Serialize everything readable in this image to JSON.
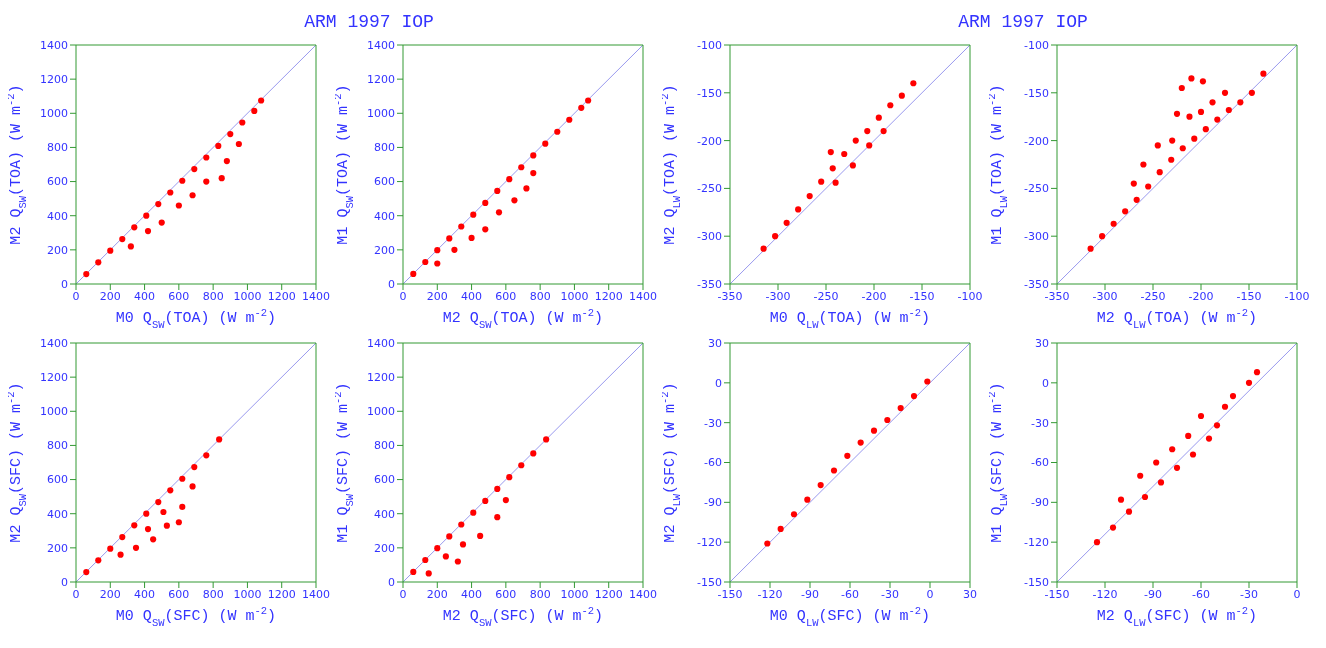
{
  "chart_data": [
    {
      "type": "scatter",
      "title": "ARM 1997 IOP",
      "xlabel": "M0 Q$_{SW}$(TOA) (W m$^{-2}$)",
      "ylabel": "M2 Q$_{SW}$(TOA) (W m$^{-2}$)",
      "xlim": [
        0,
        1400
      ],
      "ylim": [
        0,
        1400
      ],
      "xticks": [
        0,
        200,
        400,
        600,
        800,
        1000,
        1200,
        1400
      ],
      "yticks": [
        0,
        200,
        400,
        600,
        800,
        1000,
        1200,
        1400
      ],
      "grid": false,
      "series": [
        {
          "type": "scatter",
          "color": "#ff0000",
          "marker": "circle",
          "x": [
            60,
            130,
            200,
            270,
            340,
            410,
            480,
            550,
            620,
            690,
            760,
            830,
            900,
            970,
            1040,
            1080,
            320,
            420,
            500,
            600,
            680,
            760,
            850,
            880,
            950
          ],
          "values": [
            58,
            127,
            195,
            263,
            332,
            400,
            468,
            536,
            605,
            673,
            741,
            809,
            878,
            946,
            1014,
            1075,
            220,
            310,
            360,
            460,
            520,
            600,
            620,
            720,
            820
          ]
        },
        {
          "type": "line",
          "color": "#9999ee",
          "x": [
            0,
            1400
          ],
          "values": [
            0,
            1400
          ]
        }
      ]
    },
    {
      "type": "scatter",
      "xlabel": "M2 Q$_{SW}$(TOA) (W m$^{-2}$)",
      "ylabel": "M1 Q$_{SW}$(TOA) (W m$^{-2}$)",
      "xlim": [
        0,
        1400
      ],
      "ylim": [
        0,
        1400
      ],
      "xticks": [
        0,
        200,
        400,
        600,
        800,
        1000,
        1200,
        1400
      ],
      "yticks": [
        0,
        200,
        400,
        600,
        800,
        1000,
        1200,
        1400
      ],
      "grid": false,
      "series": [
        {
          "type": "scatter",
          "color": "#ff0000",
          "marker": "circle",
          "x": [
            60,
            130,
            200,
            270,
            340,
            410,
            480,
            550,
            620,
            690,
            760,
            830,
            900,
            970,
            1040,
            1080,
            200,
            300,
            400,
            480,
            560,
            650,
            720,
            760
          ],
          "values": [
            59,
            129,
            198,
            267,
            337,
            406,
            475,
            545,
            614,
            684,
            753,
            822,
            892,
            962,
            1032,
            1075,
            120,
            200,
            270,
            320,
            420,
            490,
            560,
            650
          ]
        },
        {
          "type": "line",
          "color": "#9999ee",
          "x": [
            0,
            1400
          ],
          "values": [
            0,
            1400
          ]
        }
      ]
    },
    {
      "type": "scatter",
      "title": "ARM 1997 IOP",
      "xlabel": "M0 Q$_{LW}$(TOA) (W m$^{-2}$)",
      "ylabel": "M2 Q$_{LW}$(TOA) (W m$^{-2}$)",
      "xlim": [
        -350,
        -100
      ],
      "ylim": [
        -350,
        -100
      ],
      "xticks": [
        -350,
        -300,
        -250,
        -200,
        -150,
        -100
      ],
      "yticks": [
        -350,
        -300,
        -250,
        -200,
        -150,
        -100
      ],
      "grid": false,
      "series": [
        {
          "type": "scatter",
          "color": "#ff0000",
          "marker": "circle",
          "x": [
            -315,
            -303,
            -291,
            -279,
            -267,
            -255,
            -243,
            -231,
            -219,
            -207,
            -195,
            -183,
            -171,
            -159,
            -240,
            -222,
            -245,
            -205,
            -190
          ],
          "values": [
            -313,
            -300,
            -286,
            -272,
            -258,
            -243,
            -229,
            -214,
            -200,
            -190,
            -176,
            -163,
            -153,
            -140,
            -244,
            -226,
            -212,
            -205,
            -190
          ]
        },
        {
          "type": "line",
          "color": "#9999ee",
          "x": [
            -350,
            -100
          ],
          "values": [
            -350,
            -100
          ]
        }
      ]
    },
    {
      "type": "scatter",
      "xlabel": "M2 Q$_{LW}$(TOA) (W m$^{-2}$)",
      "ylabel": "M1 Q$_{LW}$(TOA) (W m$^{-2}$)",
      "xlim": [
        -350,
        -100
      ],
      "ylim": [
        -350,
        -100
      ],
      "xticks": [
        -350,
        -300,
        -250,
        -200,
        -150,
        -100
      ],
      "yticks": [
        -350,
        -300,
        -250,
        -200,
        -150,
        -100
      ],
      "grid": false,
      "series": [
        {
          "type": "scatter",
          "color": "#ff0000",
          "marker": "circle",
          "x": [
            -315,
            -303,
            -291,
            -279,
            -267,
            -255,
            -243,
            -231,
            -219,
            -207,
            -195,
            -183,
            -171,
            -159,
            -147,
            -135,
            -270,
            -260,
            -245,
            -225,
            -212,
            -200,
            -188,
            -210,
            -198,
            -220,
            -175,
            -230
          ],
          "values": [
            -313,
            -300,
            -287,
            -274,
            -262,
            -248,
            -233,
            -220,
            -208,
            -198,
            -188,
            -178,
            -168,
            -160,
            -150,
            -130,
            -245,
            -225,
            -205,
            -172,
            -175,
            -170,
            -160,
            -135,
            -138,
            -145,
            -150,
            -200
          ]
        },
        {
          "type": "line",
          "color": "#9999ee",
          "x": [
            -350,
            -100
          ],
          "values": [
            -350,
            -100
          ]
        }
      ]
    },
    {
      "type": "scatter",
      "xlabel": "M0 Q$_{SW}$(SFC) (W m$^{-2}$)",
      "ylabel": "M2 Q$_{SW}$(SFC) (W m$^{-2}$)",
      "xlim": [
        0,
        1400
      ],
      "ylim": [
        0,
        1400
      ],
      "xticks": [
        0,
        200,
        400,
        600,
        800,
        1000,
        1200,
        1400
      ],
      "yticks": [
        0,
        200,
        400,
        600,
        800,
        1000,
        1200,
        1400
      ],
      "grid": false,
      "series": [
        {
          "type": "scatter",
          "color": "#ff0000",
          "marker": "circle",
          "x": [
            60,
            130,
            200,
            270,
            340,
            410,
            480,
            550,
            620,
            690,
            760,
            835,
            260,
            350,
            450,
            420,
            530,
            600,
            620,
            510,
            680
          ],
          "values": [
            58,
            127,
            195,
            263,
            332,
            400,
            468,
            537,
            605,
            673,
            742,
            835,
            160,
            200,
            250,
            310,
            330,
            350,
            440,
            410,
            560
          ]
        },
        {
          "type": "line",
          "color": "#9999ee",
          "x": [
            0,
            1400
          ],
          "values": [
            0,
            1400
          ]
        }
      ]
    },
    {
      "type": "scatter",
      "xlabel": "M2 Q$_{SW}$(SFC) (W m$^{-2}$)",
      "ylabel": "M1 Q$_{SW}$(SFC) (W m$^{-2}$)",
      "xlim": [
        0,
        1400
      ],
      "ylim": [
        0,
        1400
      ],
      "xticks": [
        0,
        200,
        400,
        600,
        800,
        1000,
        1200,
        1400
      ],
      "yticks": [
        0,
        200,
        400,
        600,
        800,
        1000,
        1200,
        1400
      ],
      "grid": false,
      "series": [
        {
          "type": "scatter",
          "color": "#ff0000",
          "marker": "circle",
          "x": [
            60,
            130,
            200,
            270,
            340,
            410,
            480,
            550,
            620,
            690,
            760,
            835,
            150,
            250,
            350,
            320,
            450,
            550,
            600
          ],
          "values": [
            59,
            129,
            198,
            267,
            337,
            406,
            475,
            545,
            614,
            684,
            753,
            835,
            50,
            150,
            220,
            120,
            270,
            380,
            480
          ]
        },
        {
          "type": "line",
          "color": "#9999ee",
          "x": [
            0,
            1400
          ],
          "values": [
            0,
            1400
          ]
        }
      ]
    },
    {
      "type": "scatter",
      "xlabel": "M0 Q$_{LW}$(SFC) (W m$^{-2}$)",
      "ylabel": "M2 Q$_{LW}$(SFC) (W m$^{-2}$)",
      "xlim": [
        -150,
        30
      ],
      "ylim": [
        -150,
        30
      ],
      "xticks": [
        -150,
        -120,
        -90,
        -60,
        -30,
        0,
        30
      ],
      "yticks": [
        -150,
        -120,
        -90,
        -60,
        -30,
        0,
        30
      ],
      "grid": false,
      "series": [
        {
          "type": "scatter",
          "color": "#ff0000",
          "marker": "circle",
          "x": [
            -122,
            -112,
            -102,
            -92,
            -82,
            -72,
            -62,
            -52,
            -42,
            -32,
            -22,
            -12,
            -2
          ],
          "values": [
            -121,
            -110,
            -99,
            -88,
            -77,
            -66,
            -55,
            -45,
            -36,
            -28,
            -19,
            -10,
            1
          ]
        },
        {
          "type": "line",
          "color": "#9999ee",
          "x": [
            -150,
            30
          ],
          "values": [
            -150,
            30
          ]
        }
      ]
    },
    {
      "type": "scatter",
      "xlabel": "M2 Q$_{LW}$(SFC) (W m$^{-2}$)",
      "ylabel": "M1 Q$_{LW}$(SFC) (W m$^{-2}$)",
      "xlim": [
        -150,
        0
      ],
      "ylim": [
        -150,
        30
      ],
      "xticks": [
        -150,
        -120,
        -90,
        -60,
        -30,
        0
      ],
      "yticks": [
        -150,
        -120,
        -90,
        -60,
        -30,
        0,
        30
      ],
      "grid": false,
      "series": [
        {
          "type": "scatter",
          "color": "#ff0000",
          "marker": "circle",
          "x": [
            -125,
            -115,
            -105,
            -95,
            -85,
            -75,
            -65,
            -55,
            -110,
            -98,
            -88,
            -78,
            -68,
            -60,
            -50,
            -45,
            -40,
            -30,
            -25
          ],
          "values": [
            -120,
            -109,
            -97,
            -86,
            -75,
            -64,
            -54,
            -42,
            -88,
            -70,
            -60,
            -50,
            -40,
            -25,
            -32,
            -18,
            -10,
            0,
            8
          ]
        },
        {
          "type": "line",
          "color": "#9999ee",
          "x": [
            -150,
            0
          ],
          "values": [
            -150,
            30
          ]
        }
      ]
    }
  ]
}
